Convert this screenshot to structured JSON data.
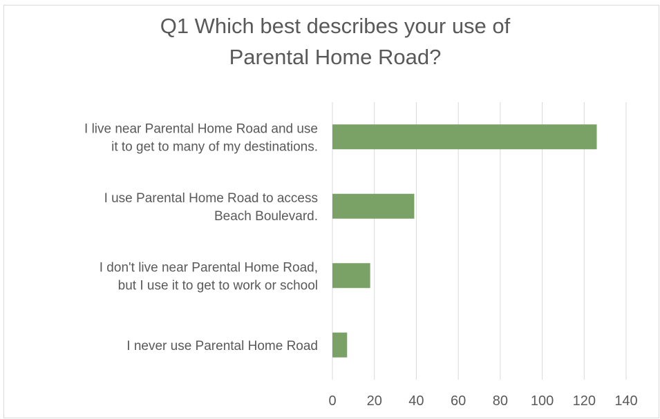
{
  "chart_data": {
    "type": "bar",
    "orientation": "horizontal",
    "title": "Q1 Which best describes your use of\nParental Home Road?",
    "categories": [
      "I live near Parental Home Road and use\nit to get to many of my destinations.",
      "I use Parental Home Road to access\nBeach Boulevard.",
      "I don't live near Parental Home Road,\nbut I use it to get to work or school",
      "I never use Parental Home Road"
    ],
    "values": [
      126,
      39,
      18,
      7
    ],
    "color": "#7aa166",
    "xlim": [
      0,
      140
    ],
    "xticks": [
      0,
      20,
      40,
      60,
      80,
      100,
      120,
      140
    ],
    "grid": true
  }
}
